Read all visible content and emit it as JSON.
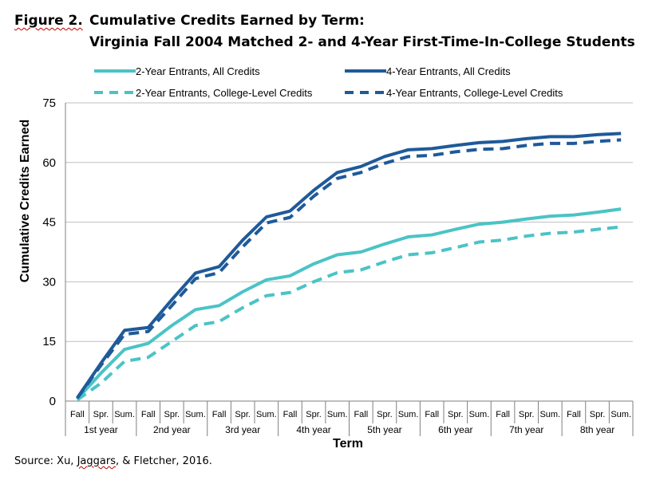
{
  "figure": {
    "label": "Figure 2.",
    "title_line1": "Cumulative Credits Earned by Term:",
    "title_line2": "Virginia Fall 2004 Matched 2- and 4-Year First-Time-In-College Students",
    "source_prefix": "Source: Xu, ",
    "source_name": "Jaggars",
    "source_suffix": ", & Fletcher, 2016."
  },
  "colors": {
    "two_year": "#4bc3c6",
    "four_year": "#1f5a99",
    "grid": "#bfbfbf",
    "axis": "#7f7f7f"
  },
  "chart_data": {
    "type": "line",
    "xlabel": "Term",
    "ylabel": "Cumulative Credits Earned",
    "ylim": [
      0,
      75
    ],
    "yticks": [
      0,
      15,
      30,
      45,
      60,
      75
    ],
    "grid": "horizontal",
    "legend_position": "top",
    "term_labels": [
      "Fall",
      "Spr.",
      "Sum."
    ],
    "years": [
      "1st year",
      "2nd year",
      "3rd year",
      "4th year",
      "5th year",
      "6th year",
      "7th year",
      "8th year"
    ],
    "categories": [
      "Fall",
      "Spr.",
      "Sum.",
      "Fall",
      "Spr.",
      "Sum.",
      "Fall",
      "Spr.",
      "Sum.",
      "Fall",
      "Spr.",
      "Sum.",
      "Fall",
      "Spr.",
      "Sum.",
      "Fall",
      "Spr.",
      "Sum.",
      "Fall",
      "Spr.",
      "Sum.",
      "Fall",
      "Spr.",
      "Sum."
    ],
    "series": [
      {
        "name": "2-Year Entrants, All Credits",
        "color": "#4bc3c6",
        "dash": false,
        "values": [
          0.5,
          7,
          13,
          14.5,
          19,
          23,
          24,
          27.5,
          30.5,
          31.5,
          34.5,
          36.8,
          37.5,
          39.5,
          41.3,
          41.8,
          43.2,
          44.5,
          45,
          45.8,
          46.5,
          46.8,
          47.5,
          48.3
        ]
      },
      {
        "name": "4-Year Entrants, All Credits",
        "color": "#1f5a99",
        "dash": false,
        "values": [
          0.8,
          9.5,
          17.8,
          18.5,
          25.5,
          32.2,
          33.8,
          40.5,
          46.3,
          47.8,
          53,
          57.5,
          59,
          61.5,
          63.2,
          63.5,
          64.3,
          65,
          65.3,
          66,
          66.5,
          66.5,
          67,
          67.3
        ]
      },
      {
        "name": "2-Year Entrants, College-Level Credits",
        "color": "#4bc3c6",
        "dash": true,
        "values": [
          0.3,
          4.5,
          10,
          11,
          15,
          19,
          20,
          23.5,
          26.5,
          27.3,
          30,
          32.3,
          33,
          35,
          36.8,
          37.3,
          38.6,
          40,
          40.5,
          41.5,
          42.2,
          42.5,
          43.2,
          43.8
        ]
      },
      {
        "name": "4-Year Entrants, College-Level Credits",
        "color": "#1f5a99",
        "dash": true,
        "values": [
          0.7,
          9,
          16.8,
          17.5,
          24,
          30.8,
          32.3,
          38.8,
          44.8,
          46.2,
          51.5,
          56,
          57.5,
          59.8,
          61.5,
          61.8,
          62.7,
          63.3,
          63.5,
          64.3,
          64.8,
          64.8,
          65.3,
          65.7
        ]
      }
    ]
  }
}
